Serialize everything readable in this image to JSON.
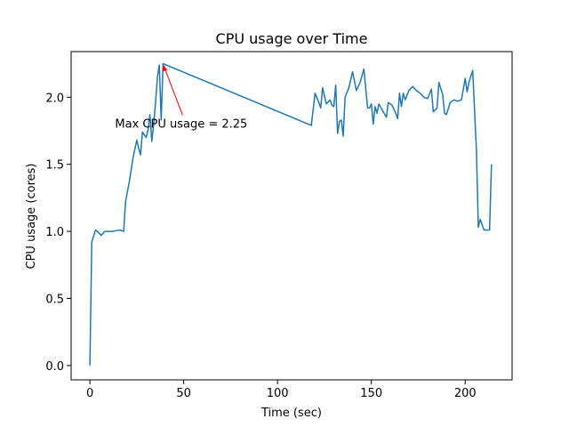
{
  "chart_data": {
    "type": "line",
    "title": "CPU usage over Time",
    "xlabel": "Time (sec)",
    "ylabel": "CPU usage (cores)",
    "x": [
      0,
      1,
      3,
      4,
      6,
      8,
      10,
      12,
      14,
      16,
      18,
      19,
      21,
      23,
      25,
      26,
      27,
      28,
      30,
      31,
      32,
      33,
      34,
      35,
      36,
      37,
      38,
      39,
      118,
      120,
      122,
      123,
      124,
      126,
      128,
      129,
      130,
      131,
      132,
      133,
      134,
      135,
      136,
      138,
      140,
      142,
      144,
      146,
      148,
      149,
      150,
      151,
      152,
      153,
      154,
      156,
      158,
      159,
      161,
      163,
      164,
      165,
      166,
      167,
      168,
      170,
      172,
      174,
      176,
      178,
      180,
      182,
      183,
      185,
      186,
      188,
      189,
      190,
      192,
      194,
      196,
      198,
      200,
      201,
      202,
      204,
      206,
      207,
      208,
      210,
      212,
      213,
      214
    ],
    "y": [
      0,
      0.92,
      1.01,
      1.0,
      0.97,
      1.0,
      1.0,
      1.0,
      1.005,
      1.01,
      1.0,
      1.22,
      1.37,
      1.55,
      1.68,
      1.62,
      1.57,
      1.74,
      1.7,
      1.76,
      1.87,
      1.67,
      1.8,
      1.96,
      2.15,
      2.24,
      1.83,
      2.25,
      1.79,
      2.03,
      1.96,
      1.92,
      2.07,
      1.95,
      1.98,
      1.94,
      1.93,
      2.09,
      1.73,
      1.82,
      1.83,
      1.71,
      2.0,
      2.07,
      2.19,
      2.05,
      2.11,
      2.21,
      1.92,
      1.92,
      1.95,
      1.8,
      1.93,
      1.88,
      1.95,
      1.9,
      1.85,
      1.96,
      1.94,
      1.88,
      1.84,
      2.03,
      1.93,
      2.03,
      1.98,
      2.05,
      2.08,
      2.05,
      2.03,
      2.0,
      1.99,
      2.06,
      1.89,
      1.92,
      2.11,
      2.02,
      1.88,
      1.87,
      1.96,
      1.98,
      1.97,
      1.98,
      2.14,
      2.04,
      2.11,
      2.2,
      1.6,
      1.03,
      1.09,
      1.01,
      1.01,
      1.01,
      1.5
    ],
    "color": "#1f77b4",
    "xlim": [
      -10,
      225
    ],
    "ylim": [
      -0.107,
      2.34
    ],
    "xticks": [
      0,
      50,
      100,
      150,
      200
    ],
    "yticks": [
      {
        "value": 0,
        "label": "0.0"
      },
      {
        "value": 0.5,
        "label": "0.5"
      },
      {
        "value": 1,
        "label": "1.0"
      },
      {
        "value": 1.5,
        "label": "1.5"
      },
      {
        "value": 2,
        "label": "2.0"
      }
    ],
    "grid": false,
    "annotation": {
      "text": "Max CPU usage = 2.25",
      "x": 39,
      "y": 2.25,
      "color": "#ff0000"
    }
  }
}
